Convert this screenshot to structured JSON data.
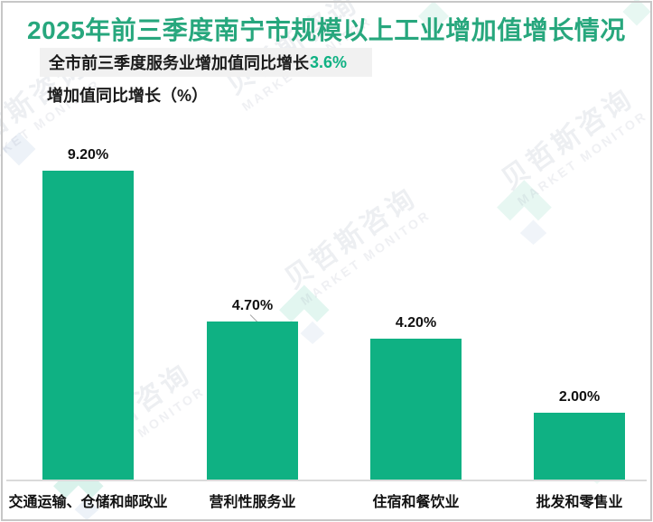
{
  "header": {
    "title": "2025年前三季度南宁市规模以上工业增加值增长情况",
    "subtitle_text": "全市前三季度服务业增加值同比增长",
    "subtitle_highlight": "3.6%",
    "axis_note": "增加值同比增长（%）"
  },
  "watermark": {
    "cn": "贝哲斯咨询",
    "en": "MARKET MONITOR"
  },
  "colors": {
    "title_green": "#27a77d",
    "bar_green": "#0fb183",
    "highlight_green": "#0fb183",
    "subtitle_bg": "#f1f1f1",
    "axis_line": "#dadada",
    "frame_border": "#c7c7c7",
    "label_text": "#111111"
  },
  "chart_data": {
    "type": "bar",
    "title": "2025年前三季度南宁市规模以上工业增加值增长情况",
    "subtitle": "全市前三季度服务业增加值同比增长3.6%",
    "ylabel": "增加值同比增长（%）",
    "categories": [
      "交通运输、仓储和邮政业",
      "营利性服务业",
      "住宿和餐饮业",
      "批发和零售业"
    ],
    "values": [
      9.2,
      4.7,
      4.2,
      2.0
    ],
    "value_labels": [
      "9.20%",
      "4.70%",
      "4.20%",
      "2.00%"
    ],
    "ylim": [
      0,
      10
    ],
    "grid": false,
    "legend": false,
    "bar_color": "#0fb183"
  }
}
